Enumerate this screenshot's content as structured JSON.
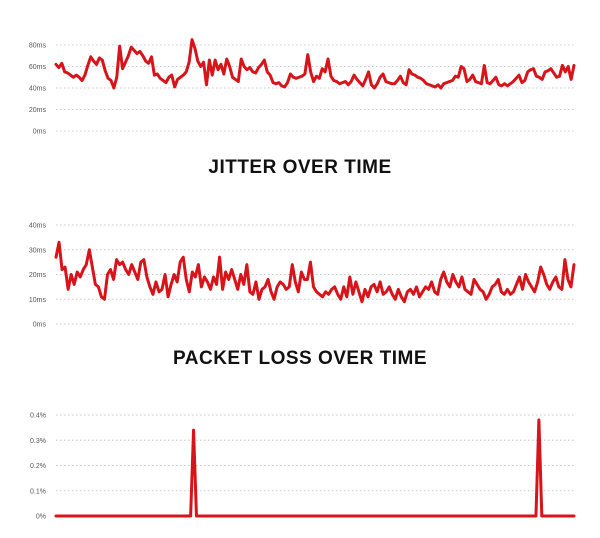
{
  "colors": {
    "series": "#d7141a",
    "grid": "#c8c8c8",
    "tick": "#555555",
    "title": "#111111"
  },
  "chart_data": [
    {
      "type": "line",
      "title": "",
      "xlabel": "",
      "ylabel": "",
      "ylim": [
        0,
        80
      ],
      "yticks": [
        "0ms",
        "20ms",
        "40ms",
        "60ms",
        "80ms"
      ],
      "grid": true,
      "legend": "none",
      "series": [
        {
          "values": [
            62,
            59,
            63,
            55,
            54,
            52,
            50,
            52,
            50,
            47,
            52,
            61,
            69,
            65,
            62,
            68,
            66,
            56,
            49,
            47,
            40,
            50,
            79,
            58,
            64,
            70,
            78,
            75,
            72,
            74,
            70,
            65,
            63,
            69,
            52,
            53,
            49,
            47,
            45,
            50,
            52,
            41,
            48,
            50,
            52,
            55,
            64,
            85,
            77,
            65,
            60,
            64,
            43,
            66,
            52,
            66,
            57,
            62,
            53,
            67,
            60,
            50,
            48,
            46,
            67,
            60,
            57,
            59,
            55,
            54,
            59,
            62,
            66,
            55,
            52,
            45,
            44,
            45,
            42,
            41,
            45,
            53,
            50,
            49,
            50,
            51,
            53,
            71,
            55,
            46,
            51,
            49,
            58,
            55,
            67,
            51,
            47,
            46,
            44,
            45,
            46,
            43,
            46,
            52,
            48,
            45,
            42,
            48,
            55,
            43,
            40,
            44,
            50,
            53,
            46,
            45,
            44,
            44,
            47,
            51,
            45,
            43,
            57,
            53,
            52,
            50,
            49,
            47,
            44,
            43,
            42,
            41,
            43,
            40,
            44,
            45,
            46,
            47,
            51,
            50,
            60,
            58,
            46,
            48,
            52,
            46,
            45,
            44,
            61,
            45,
            44,
            47,
            50,
            43,
            42,
            44,
            42,
            44,
            46,
            49,
            52,
            45,
            47,
            55,
            57,
            58,
            51,
            50,
            48,
            55,
            56,
            58,
            54,
            50,
            51,
            61,
            55,
            60,
            48,
            61
          ]
        }
      ]
    },
    {
      "type": "line",
      "title": "JITTER OVER TIME",
      "xlabel": "",
      "ylabel": "",
      "ylim": [
        0,
        40
      ],
      "yticks": [
        "0ms",
        "10ms",
        "20ms",
        "30ms",
        "40ms"
      ],
      "grid": true,
      "legend": "none",
      "series": [
        {
          "values": [
            27,
            33,
            22,
            23,
            14,
            20,
            16,
            21,
            19,
            22,
            24,
            30,
            23,
            16,
            15,
            11,
            10,
            20,
            22,
            18,
            26,
            24,
            25,
            22,
            20,
            24,
            21,
            18,
            25,
            26,
            19,
            15,
            12,
            17,
            13,
            14,
            20,
            11,
            16,
            20,
            17,
            25,
            27,
            18,
            13,
            21,
            19,
            24,
            15,
            19,
            17,
            14,
            19,
            16,
            27,
            14,
            21,
            18,
            22,
            18,
            14,
            20,
            16,
            24,
            13,
            12,
            17,
            10,
            14,
            15,
            18,
            13,
            10,
            15,
            17,
            16,
            14,
            15,
            24,
            17,
            13,
            21,
            18,
            18,
            25,
            15,
            13,
            12,
            11,
            13,
            12,
            14,
            15,
            12,
            10,
            15,
            11,
            19,
            12,
            17,
            13,
            9,
            14,
            11,
            15,
            16,
            13,
            17,
            12,
            13,
            15,
            12,
            10,
            14,
            11,
            9,
            13,
            14,
            12,
            15,
            11,
            13,
            15,
            14,
            17,
            13,
            12,
            18,
            21,
            17,
            15,
            20,
            17,
            15,
            19,
            14,
            13,
            12,
            18,
            16,
            14,
            13,
            10,
            12,
            15,
            16,
            18,
            13,
            12,
            14,
            12,
            13,
            16,
            19,
            14,
            20,
            17,
            15,
            13,
            17,
            23,
            20,
            16,
            14,
            17,
            19,
            15,
            14,
            26,
            18,
            15,
            24
          ]
        }
      ]
    },
    {
      "type": "line",
      "title": "PACKET LOSS OVER TIME",
      "xlabel": "",
      "ylabel": "",
      "ylim": [
        0,
        0.4
      ],
      "yticks": [
        "0%",
        "0.1%",
        "0.2%",
        "0.3%",
        "0.4%"
      ],
      "grid": true,
      "legend": "none",
      "series": [
        {
          "values": [
            0,
            0,
            0,
            0,
            0,
            0,
            0,
            0,
            0,
            0,
            0,
            0,
            0,
            0,
            0,
            0,
            0,
            0,
            0,
            0,
            0,
            0,
            0,
            0,
            0,
            0,
            0,
            0,
            0,
            0,
            0,
            0,
            0,
            0,
            0,
            0,
            0,
            0,
            0,
            0,
            0,
            0,
            0,
            0,
            0,
            0,
            0,
            0.34,
            0,
            0,
            0,
            0,
            0,
            0,
            0,
            0,
            0,
            0,
            0,
            0,
            0,
            0,
            0,
            0,
            0,
            0,
            0,
            0,
            0,
            0,
            0,
            0,
            0,
            0,
            0,
            0,
            0,
            0,
            0,
            0,
            0,
            0,
            0,
            0,
            0,
            0,
            0,
            0,
            0,
            0,
            0,
            0,
            0,
            0,
            0,
            0,
            0,
            0,
            0,
            0,
            0,
            0,
            0,
            0,
            0,
            0,
            0,
            0,
            0,
            0,
            0,
            0,
            0,
            0,
            0,
            0,
            0,
            0,
            0,
            0,
            0,
            0,
            0,
            0,
            0,
            0,
            0,
            0,
            0,
            0,
            0,
            0,
            0,
            0,
            0,
            0,
            0,
            0,
            0,
            0,
            0,
            0,
            0,
            0,
            0,
            0,
            0,
            0,
            0,
            0,
            0,
            0,
            0,
            0,
            0,
            0,
            0,
            0,
            0,
            0,
            0,
            0,
            0,
            0,
            0,
            0.38,
            0,
            0,
            0,
            0,
            0,
            0,
            0,
            0,
            0,
            0,
            0,
            0
          ]
        }
      ]
    }
  ]
}
